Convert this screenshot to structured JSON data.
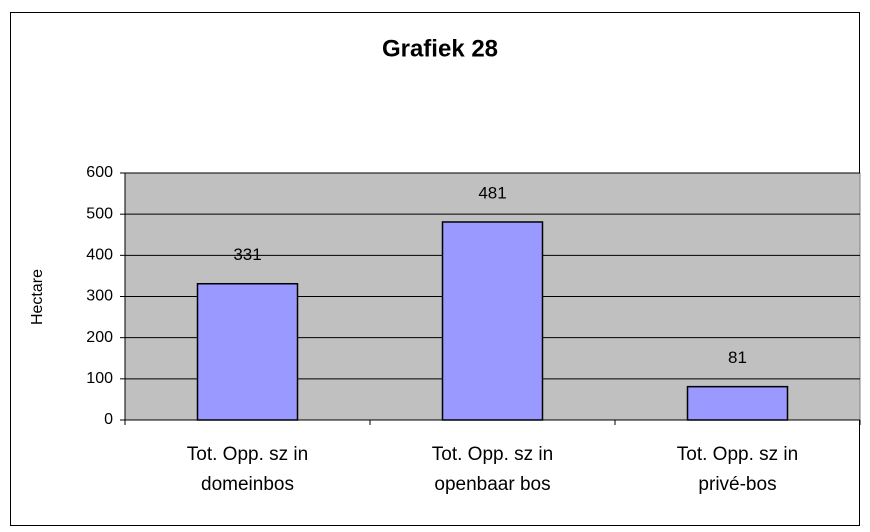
{
  "chart_data": {
    "type": "bar",
    "title": "Grafiek 28",
    "ylabel": "Hectare",
    "categories": [
      "Tot. Opp. sz in domeinbos",
      "Tot. Opp. sz in openbaar bos",
      "Tot. Opp. sz in privé-bos"
    ],
    "values": [
      331,
      481,
      81
    ],
    "color": "#9999ff",
    "plot_background": "#c0c0c0",
    "ylim": [
      0,
      600
    ],
    "yticks": [
      0,
      100,
      200,
      300,
      400,
      500,
      600
    ],
    "grid": true
  }
}
